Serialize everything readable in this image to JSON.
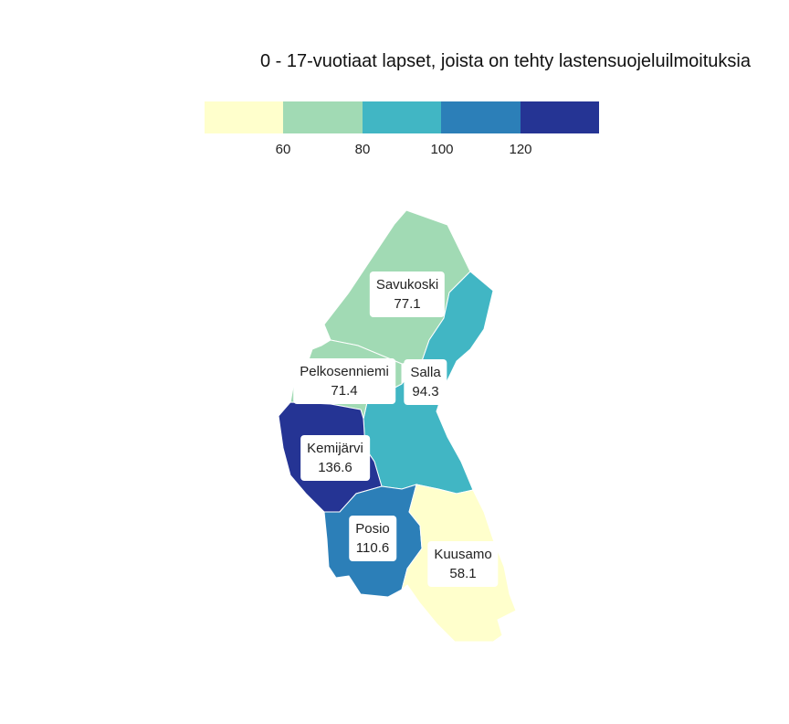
{
  "title": "0 - 17-vuotiaat lapset, joista on tehty lastensuojeluilmoituksia",
  "legend": {
    "colors": [
      "#ffffcc",
      "#a1dab4",
      "#41b6c4",
      "#2c7fb8",
      "#253494"
    ],
    "ticks": [
      "60",
      "80",
      "100",
      "120"
    ]
  },
  "regions": [
    {
      "name": "Savukoski",
      "value": "77.1",
      "color": "#a1dab4"
    },
    {
      "name": "Salla",
      "value": "94.3",
      "color": "#41b6c4"
    },
    {
      "name": "Pelkosenniemi",
      "value": "71.4",
      "color": "#a1dab4"
    },
    {
      "name": "Kemijärvi",
      "value": "136.6",
      "color": "#253494"
    },
    {
      "name": "Posio",
      "value": "110.6",
      "color": "#2c7fb8"
    },
    {
      "name": "Kuusamo",
      "value": "58.1",
      "color": "#ffffcc"
    }
  ]
}
